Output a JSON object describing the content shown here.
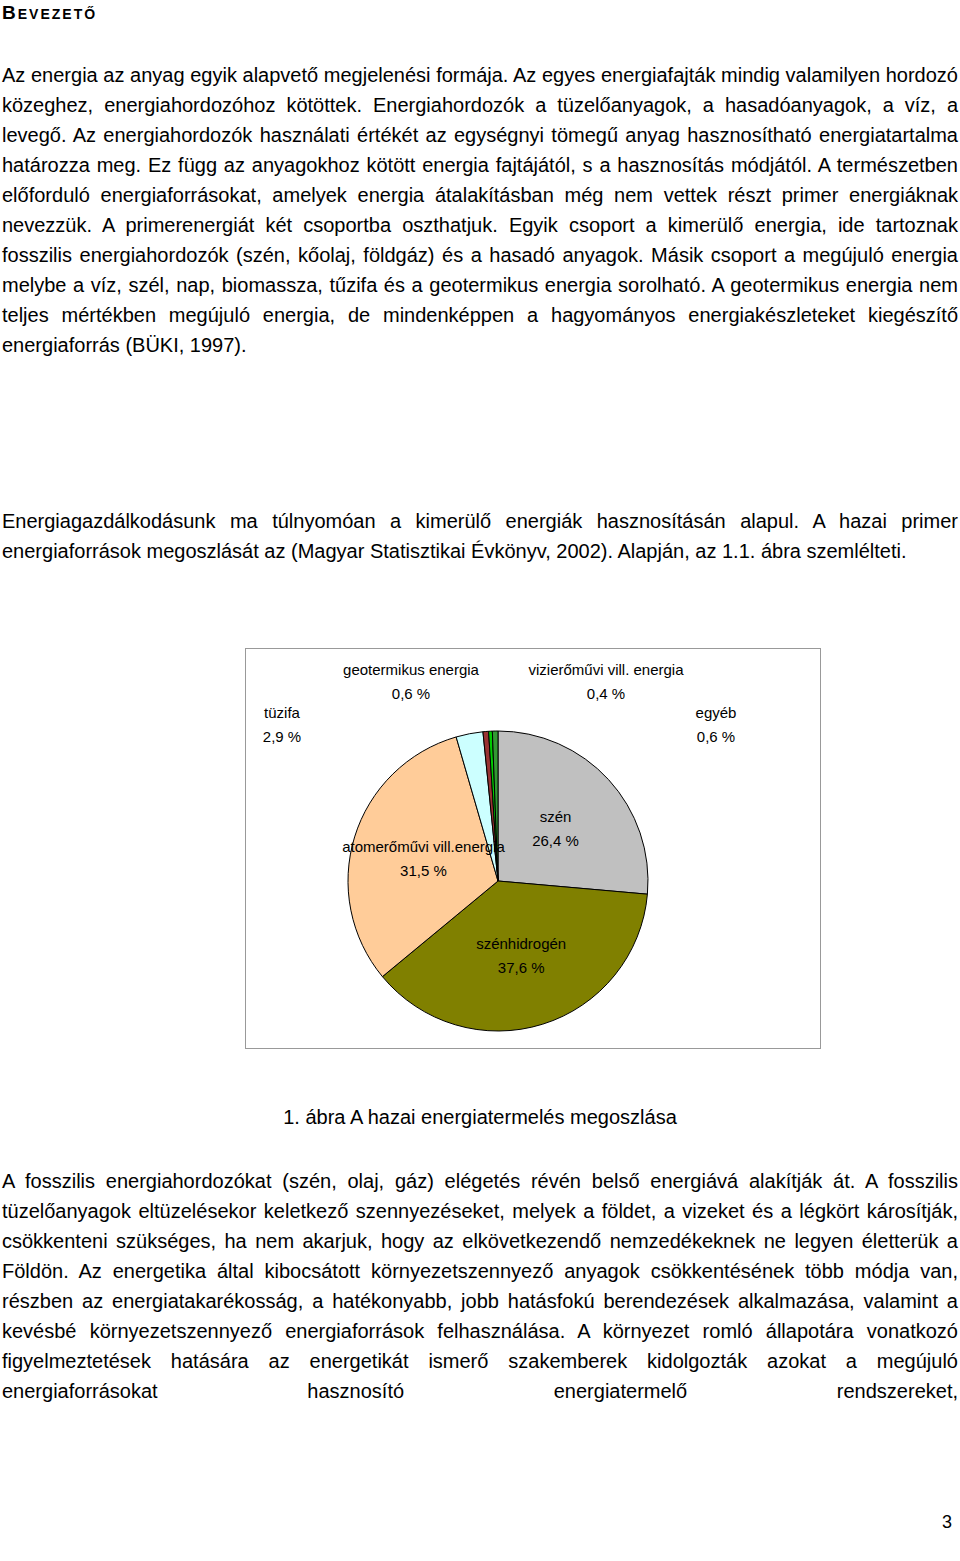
{
  "heading": "BEVEZETŐ",
  "paragraphs_before": [
    "Az energia az anyag egyik alapvető megjelenési formája. Az egyes energiafajták mindig valamilyen hordozó közeghez, energiahordozóhoz kötöttek. Energiahordozók a tüzelőanyagok, a hasadóanyagok, a víz, a levegő. Az energiahordozók használati értékét az egységnyi tömegű anyag hasznosítható energiatartalma határozza meg. Ez függ az anyagokhoz kötött energia fajtájától, s a hasznosítás módjától. A természetben előforduló energiaforrásokat, amelyek energia átalakításban még nem vettek részt primer energiáknak nevezzük. A primerenergiát két csoportba oszthatjuk. Egyik csoport a kimerülő energia, ide tartoznak fosszilis energiahordozók (szén, kőolaj, földgáz) és a hasadó anyagok. Másik csoport a megújuló energia melybe a víz, szél, nap, biomassza, tűzifa és a geotermikus energia sorolható. A geotermikus energia nem teljes mértékben megújuló energia, de mindenképpen a hagyományos energiakészleteket kiegészítő energiaforrás (BÜKI, 1997).",
    "Energiagazdálkodásunk ma túlnyomóan a kimerülő energiák hasznosításán alapul. A hazai primer energiaforrások megoszlását az (Magyar Statisztikai Évkönyv, 2002). Alapján, az 1.1. ábra szemlélteti."
  ],
  "chart_data": {
    "type": "pie",
    "categories": [
      "szén",
      "szénhidrogén",
      "atomerőművi vill.energia",
      "tüzifa",
      "geotermikus energia",
      "vizierőművi vill. energia",
      "egyéb"
    ],
    "values": [
      26.4,
      37.6,
      31.5,
      2.9,
      0.6,
      0.4,
      0.6
    ],
    "value_labels": [
      "26,4 %",
      "37,6 %",
      "31,5 %",
      "2,9 %",
      "0,6 %",
      "0,4 %",
      "0,6 %"
    ],
    "colors": [
      "#c0c0c0",
      "#808000",
      "#ffcc99",
      "#ccffff",
      "#993333",
      "#00cc00",
      "#339933"
    ],
    "data_labels": true
  },
  "caption": "1. ábra A hazai energiatermelés megoszlása",
  "paragraphs_after": [
    "A fosszilis energiahordozókat (szén, olaj, gáz) elégetés révén belső energiává alakítják át. A fosszilis tüzelőanyagok eltüzelésekor keletkező szennyezéseket, melyek a földet, a vizeket és a légkört károsítják, csökkenteni szükséges, ha nem akarjuk, hogy az elkövetkezendő nemzedékeknek ne legyen életterük a Földön. Az energetika által kibocsátott környezetszennyező anyagok csökkentésének több módja van, részben az energiatakarékosság, a hatékonyabb, jobb hatásfokú berendezések alkalmazása, valamint a kevésbé környezetszennyező energiaforrások felhasználása. A környezet romló állapotára vonatkozó figyelmeztetések hatására az energetikát ismerő szakemberek kidolgozták azokat a megújuló energiaforrásokat hasznosító energiatermelő rendszereket,"
  ],
  "page_number": 3
}
